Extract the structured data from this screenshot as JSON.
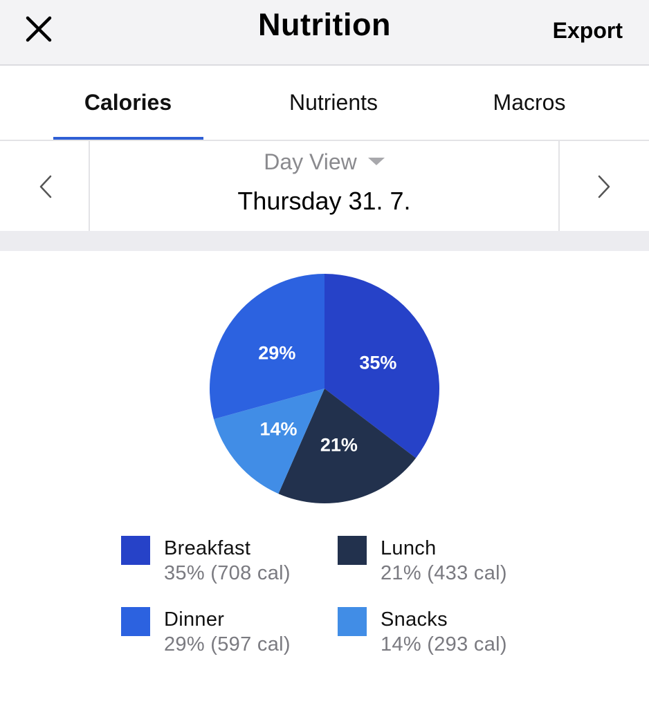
{
  "header": {
    "close_icon": "close-icon",
    "title": "Nutrition",
    "export_label": "Export"
  },
  "tabs": [
    {
      "label": "Calories",
      "active": true
    },
    {
      "label": "Nutrients",
      "active": false
    },
    {
      "label": "Macros",
      "active": false
    }
  ],
  "datebar": {
    "prev_icon": "chevron-left-icon",
    "next_icon": "chevron-right-icon",
    "view_label": "Day View",
    "date": "Thursday 31. 7."
  },
  "colors": {
    "accent": "#2f5fd5",
    "breakfast": "#2642c8",
    "lunch": "#22314d",
    "dinner": "#2c62e0",
    "snacks": "#418de6"
  },
  "chart_data": {
    "type": "pie",
    "categories": [
      "Breakfast",
      "Lunch",
      "Snacks",
      "Dinner"
    ],
    "values": [
      35,
      21,
      14,
      29
    ],
    "calories": [
      708,
      433,
      293,
      597
    ],
    "slice_labels": [
      "35%",
      "21%",
      "14%",
      "29%"
    ],
    "colors": [
      "#2642c8",
      "#22314d",
      "#418de6",
      "#2c62e0"
    ],
    "start_angle": "top",
    "direction": "clockwise"
  },
  "legend": [
    {
      "name": "Breakfast",
      "value": "35% (708 cal)",
      "color": "#2642c8"
    },
    {
      "name": "Lunch",
      "value": "21% (433 cal)",
      "color": "#22314d"
    },
    {
      "name": "Dinner",
      "value": "29% (597 cal)",
      "color": "#2c62e0"
    },
    {
      "name": "Snacks",
      "value": "14% (293 cal)",
      "color": "#418de6"
    }
  ]
}
